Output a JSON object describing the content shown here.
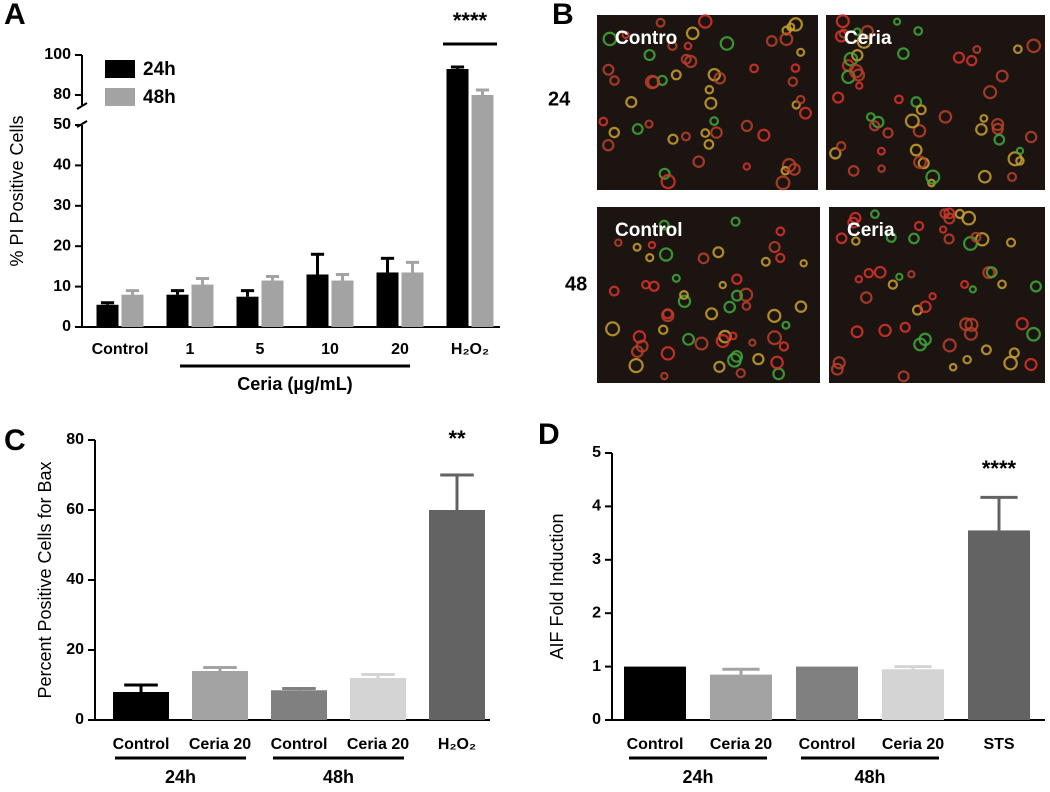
{
  "chart_data": [
    {
      "type": "bar",
      "panel": "A",
      "y_label": "% PI Positive Cells",
      "categories": [
        "Control",
        "1",
        "5",
        "10",
        "20",
        "H₂O₂"
      ],
      "series": [
        {
          "name": "24h",
          "color": "#000000",
          "values": [
            5.5,
            8,
            7.5,
            13,
            13.5,
            93
          ],
          "errors": [
            0.5,
            1,
            1.5,
            5,
            3.5,
            1
          ]
        },
        {
          "name": "48h",
          "color": "#a3a3a3",
          "values": [
            8,
            10.5,
            11.5,
            11.5,
            13.5,
            80
          ],
          "errors": [
            1,
            1.5,
            1,
            1.5,
            2.5,
            2.5
          ]
        }
      ],
      "group_label": "Ceria (µg/mL)",
      "annotations": [
        "****"
      ],
      "ylim": [
        0,
        100
      ],
      "y_break": [
        50,
        75
      ],
      "yticks": [
        0,
        10,
        20,
        30,
        40,
        50,
        80,
        100
      ]
    },
    {
      "type": "bar",
      "panel": "C",
      "y_label": "Percent Positive Cells for Bax",
      "categories": [
        "Control",
        "Ceria 20",
        "Control",
        "Ceria 20",
        "H₂O₂"
      ],
      "values": [
        8,
        14,
        8.5,
        12,
        60
      ],
      "errors": [
        2,
        1,
        0.5,
        1,
        10
      ],
      "colors": [
        "#000000",
        "#a3a3a3",
        "#808080",
        "#d4d4d4",
        "#636363"
      ],
      "groups": [
        "24h",
        "48h"
      ],
      "annotations": [
        "**"
      ],
      "ylim": [
        0,
        80
      ],
      "yticks": [
        0,
        20,
        40,
        60,
        80
      ]
    },
    {
      "type": "bar",
      "panel": "D",
      "y_label": "AIF Fold Induction",
      "categories": [
        "Control",
        "Ceria 20",
        "Control",
        "Ceria 20",
        "STS"
      ],
      "values": [
        1,
        0.85,
        1,
        0.95,
        3.55
      ],
      "errors": [
        null,
        0.1,
        null,
        0.05,
        0.62
      ],
      "colors": [
        "#000000",
        "#a3a3a3",
        "#808080",
        "#d4d4d4",
        "#636363"
      ],
      "groups": [
        "24h",
        "48h"
      ],
      "annotations": [
        "****"
      ],
      "ylim": [
        0,
        5
      ],
      "yticks": [
        0,
        1,
        2,
        3,
        4,
        5
      ]
    }
  ],
  "micrographs": {
    "panel": "B",
    "rows": [
      {
        "label": "24",
        "images": [
          "Contro",
          "Ceria"
        ]
      },
      {
        "label": "48",
        "images": [
          "Control",
          "Ceria"
        ]
      }
    ]
  }
}
